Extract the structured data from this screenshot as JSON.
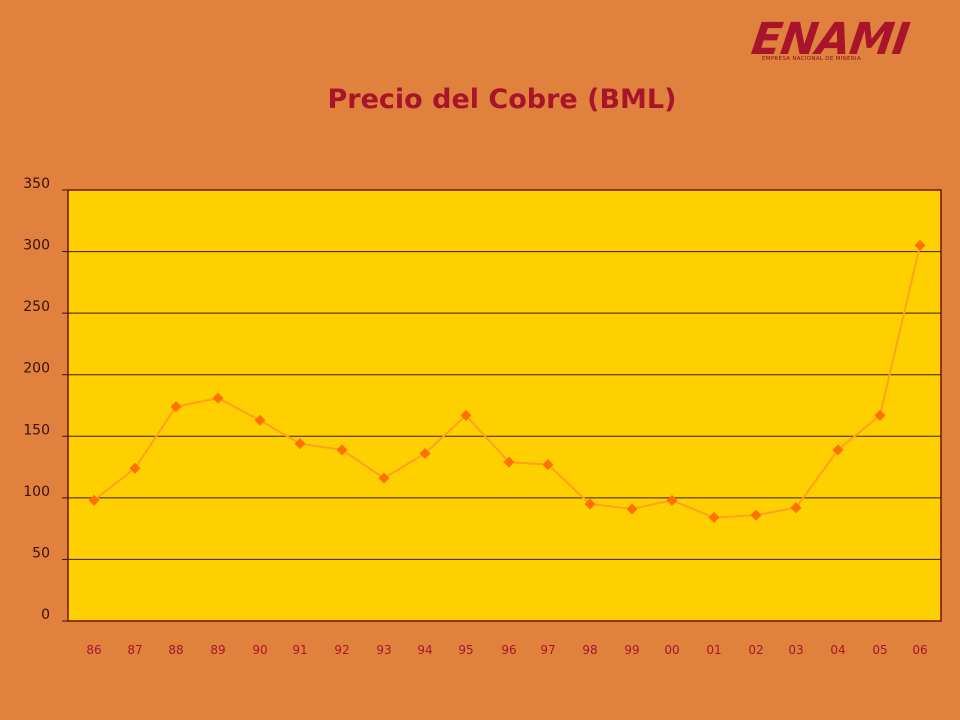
{
  "logo": {
    "name": "ENAMI",
    "tagline": "EMPRESA NACIONAL DE MINERIA"
  },
  "colors": {
    "background": "#E0823E",
    "plot_area": "#FFD000",
    "line": "#FFA020",
    "marker": "#FF7000",
    "title": "#A8152A",
    "tick_label": "#A8152A",
    "y_tick_label": "#3A1010"
  },
  "chart_data": {
    "type": "line",
    "title": "Precio del Cobre (BML)",
    "xlabel": "",
    "ylabel": "",
    "categories": [
      "86",
      "87",
      "88",
      "89",
      "90",
      "91",
      "92",
      "93",
      "94",
      "95",
      "96",
      "97",
      "98",
      "99",
      "00",
      "01",
      "02",
      "03",
      "04",
      "05",
      "06"
    ],
    "series": [
      {
        "values": [
          98,
          124,
          174,
          181,
          163,
          144,
          139,
          116,
          136,
          167,
          129,
          127,
          95,
          91,
          98,
          84,
          86,
          92,
          139,
          167,
          305
        ]
      }
    ],
    "ylim": [
      0,
      350
    ],
    "yticks": [
      0,
      50,
      100,
      150,
      200,
      250,
      300,
      350
    ],
    "grid": true,
    "legend": "none"
  }
}
